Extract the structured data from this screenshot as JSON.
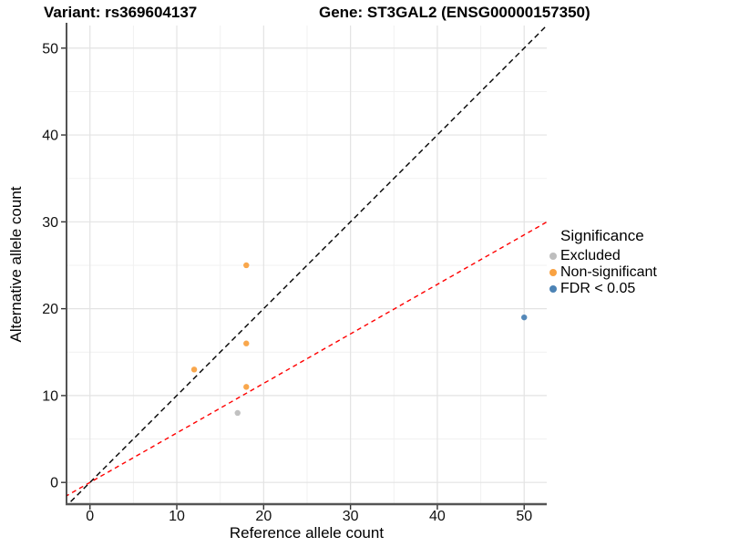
{
  "figure": {
    "title_variant": "Variant: rs369604137",
    "title_gene": "Gene: ST3GAL2 (ENSG00000157350)",
    "x_axis_label": "Reference allele count",
    "y_axis_label": "Alternative allele count"
  },
  "legend": {
    "title": "Significance",
    "items": [
      {
        "label": "Excluded",
        "color": "#BEBEBE"
      },
      {
        "label": "Non-significant",
        "color": "#F9A242"
      },
      {
        "label": "FDR < 0.05",
        "color": "#4C83B5"
      }
    ]
  },
  "chart_data": {
    "type": "scatter",
    "title": "Variant: rs369604137 — Gene: ST3GAL2 (ENSG00000157350)",
    "xlabel": "Reference allele count",
    "ylabel": "Alternative allele count",
    "x_axis": {
      "ticks": [
        0,
        10,
        20,
        30,
        40,
        50
      ],
      "minor_ticks": [
        5,
        15,
        25,
        35,
        45
      ],
      "range": [
        -2.7,
        52.6
      ]
    },
    "y_axis": {
      "ticks": [
        0,
        10,
        20,
        30,
        40,
        50
      ],
      "minor_ticks": [
        5,
        15,
        25,
        35,
        45
      ],
      "range": [
        -2.5,
        52.6
      ]
    },
    "grid": {
      "major_color": "#E3E3E3",
      "minor_color": "#F1F1F1"
    },
    "legend_title": "Significance",
    "legend_position": "right",
    "series": [
      {
        "name": "Excluded",
        "color": "#BEBEBE",
        "points": [
          [
            17,
            8
          ]
        ]
      },
      {
        "name": "Non-significant",
        "color": "#F9A242",
        "points": [
          [
            12,
            13
          ],
          [
            18,
            11
          ],
          [
            18,
            16
          ],
          [
            18,
            25
          ]
        ]
      },
      {
        "name": "FDR < 0.05",
        "color": "#4C83B5",
        "points": [
          [
            50,
            19
          ]
        ]
      }
    ],
    "ref_lines": [
      {
        "name": "identity",
        "color": "#000000",
        "dash": "6 4",
        "slope": 1,
        "intercept": 0
      },
      {
        "name": "expected-ratio",
        "color": "#FF0000",
        "dash": "5 4",
        "slope": 0.57,
        "intercept": 0
      }
    ]
  }
}
